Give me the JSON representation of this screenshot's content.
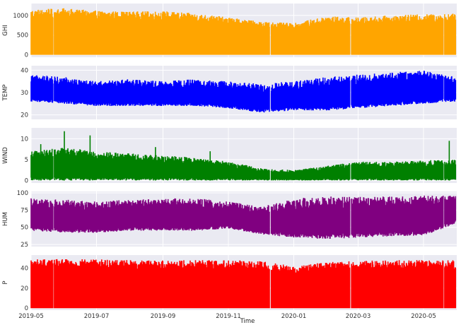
{
  "chart_data": {
    "type": "line",
    "style": "seaborn darkgrid, five stacked subplots sharing the time axis",
    "background_color": "#eaeaf2",
    "grid": true,
    "xlabel": "Time",
    "x_range": [
      "2019-05-01",
      "2020-06-01"
    ],
    "x_ticks": [
      "2019-05",
      "2019-07",
      "2019-09",
      "2019-11",
      "2020-01",
      "2020-03",
      "2020-05"
    ],
    "gaps": [
      "2019-05-22",
      "2019-12-10",
      "2020-02-23",
      "2020-05-20"
    ],
    "subplots": [
      {
        "ylabel": "GHI",
        "color": "#ffa500",
        "ylim": [
          -60,
          1300
        ],
        "yticks": [
          0,
          500,
          1000
        ],
        "fill_to_zero": true,
        "envelope_x": [
          "2019-05-01",
          "2019-06-01",
          "2019-07-01",
          "2019-08-01",
          "2019-09-01",
          "2019-10-01",
          "2019-11-01",
          "2019-12-01",
          "2020-01-01",
          "2020-02-01",
          "2020-03-01",
          "2020-04-01",
          "2020-05-01",
          "2020-05-31"
        ],
        "envelope_max": [
          1150,
          1180,
          1120,
          1100,
          1110,
          1050,
          950,
          850,
          800,
          980,
          950,
          1000,
          1030,
          1050
        ]
      },
      {
        "ylabel": "TEMP",
        "color": "#0000ff",
        "ylim": [
          18,
          42
        ],
        "yticks": [
          20,
          30,
          40
        ],
        "envelope_x": [
          "2019-05-01",
          "2019-06-01",
          "2019-07-01",
          "2019-08-01",
          "2019-09-01",
          "2019-10-01",
          "2019-11-01",
          "2019-12-01",
          "2020-01-01",
          "2020-02-01",
          "2020-03-01",
          "2020-04-01",
          "2020-05-01",
          "2020-05-31"
        ],
        "envelope_max": [
          38,
          37,
          35,
          36,
          35,
          36,
          35,
          34,
          35,
          37,
          38,
          39,
          40,
          37
        ],
        "envelope_min": [
          26,
          25,
          24,
          24,
          24,
          24,
          23,
          21,
          22,
          22,
          23,
          24,
          25,
          26
        ]
      },
      {
        "ylabel": "WIND",
        "color": "#008000",
        "ylim": [
          -0.6,
          12.6
        ],
        "yticks": [
          0,
          5,
          10
        ],
        "envelope_x": [
          "2019-05-01",
          "2019-06-01",
          "2019-07-01",
          "2019-08-01",
          "2019-09-01",
          "2019-10-01",
          "2019-11-01",
          "2019-12-01",
          "2020-01-01",
          "2020-02-01",
          "2020-03-01",
          "2020-04-01",
          "2020-05-01",
          "2020-05-31"
        ],
        "envelope_max": [
          7.0,
          8.0,
          7.0,
          6.5,
          6.0,
          5.5,
          4.5,
          3.0,
          2.5,
          3.5,
          4.5,
          4.5,
          4.8,
          5.0
        ],
        "envelope_min": [
          0,
          0,
          0,
          0,
          0,
          0,
          0,
          0,
          0,
          0,
          0,
          0,
          0,
          0
        ],
        "peaks": [
          {
            "x": "2019-06-01",
            "y": 11.8
          },
          {
            "x": "2019-06-25",
            "y": 10.8
          },
          {
            "x": "2019-05-10",
            "y": 8.7
          },
          {
            "x": "2019-08-25",
            "y": 8.0
          },
          {
            "x": "2019-10-15",
            "y": 7.0
          },
          {
            "x": "2020-05-25",
            "y": 9.5
          }
        ]
      },
      {
        "ylabel": "HUM",
        "color": "#800080",
        "ylim": [
          22,
          102
        ],
        "yticks": [
          25,
          50,
          75,
          100
        ],
        "envelope_x": [
          "2019-05-01",
          "2019-06-01",
          "2019-07-01",
          "2019-08-01",
          "2019-09-01",
          "2019-10-01",
          "2019-11-01",
          "2019-12-01",
          "2020-01-01",
          "2020-02-01",
          "2020-03-01",
          "2020-04-01",
          "2020-05-01",
          "2020-05-31"
        ],
        "envelope_max": [
          92,
          90,
          88,
          90,
          92,
          92,
          88,
          80,
          92,
          95,
          94,
          95,
          96,
          96
        ],
        "envelope_min": [
          45,
          42,
          42,
          45,
          45,
          45,
          48,
          40,
          35,
          33,
          35,
          37,
          38,
          55
        ]
      },
      {
        "ylabel": "P",
        "color": "#ff0000",
        "ylim": [
          -2,
          53
        ],
        "yticks": [
          0,
          20,
          40
        ],
        "fill_to_zero": true,
        "envelope_x": [
          "2019-05-01",
          "2019-06-01",
          "2019-07-01",
          "2019-08-01",
          "2019-09-01",
          "2019-10-01",
          "2019-11-01",
          "2019-12-01",
          "2020-01-01",
          "2020-02-01",
          "2020-03-01",
          "2020-04-01",
          "2020-05-01",
          "2020-05-31"
        ],
        "envelope_max": [
          49,
          49,
          49,
          48,
          48,
          48,
          48,
          47,
          42,
          46,
          47,
          48,
          48,
          48
        ]
      }
    ]
  }
}
